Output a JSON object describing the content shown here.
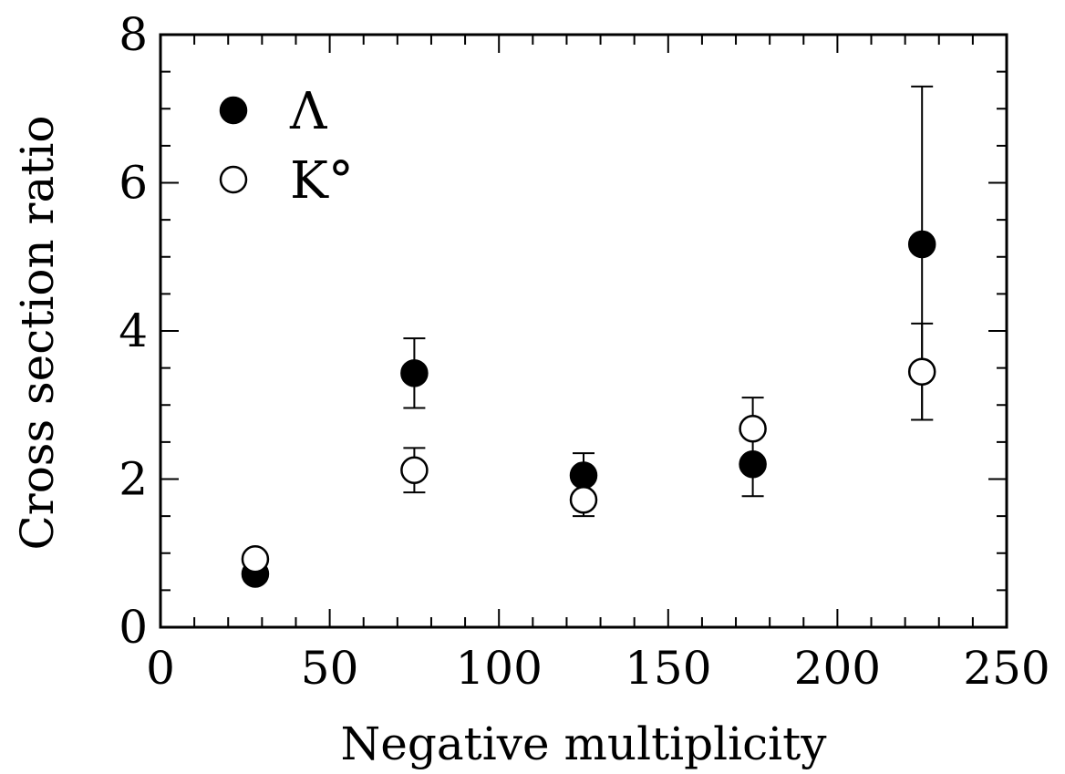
{
  "chart_data": {
    "type": "scatter",
    "xlabel": "Negative multiplicity",
    "ylabel": "Cross section ratio",
    "xlim": [
      0,
      250
    ],
    "ylim": [
      0,
      8
    ],
    "x_ticks": [
      "0",
      "50",
      "100",
      "150",
      "200",
      "250"
    ],
    "y_ticks": [
      "0",
      "2",
      "4",
      "6",
      "8"
    ],
    "grid": false,
    "legend_position": "top-left",
    "series": [
      {
        "name": "Λ",
        "marker": "filled-circle",
        "points": [
          {
            "x": 28,
            "y": 0.72
          },
          {
            "x": 75,
            "y": 3.43,
            "err_low": 0.47,
            "err_high": 0.47
          },
          {
            "x": 125,
            "y": 2.05,
            "err_low": 0.3,
            "err_high": 0.3
          },
          {
            "x": 175,
            "y": 2.2,
            "err_low": 0.43,
            "err_high": 0.9
          },
          {
            "x": 225,
            "y": 5.17,
            "err_low": 2.37,
            "err_high": 2.13
          }
        ]
      },
      {
        "name": "K°",
        "marker": "open-circle",
        "points": [
          {
            "x": 28,
            "y": 0.92
          },
          {
            "x": 75,
            "y": 2.12,
            "err_low": 0.3,
            "err_high": 0.3
          },
          {
            "x": 125,
            "y": 1.72,
            "err_low": 0.22,
            "err_high": 0.22
          },
          {
            "x": 175,
            "y": 2.68
          },
          {
            "x": 225,
            "y": 3.45,
            "err_low": 0.65,
            "err_high": 0.65
          }
        ]
      }
    ]
  }
}
